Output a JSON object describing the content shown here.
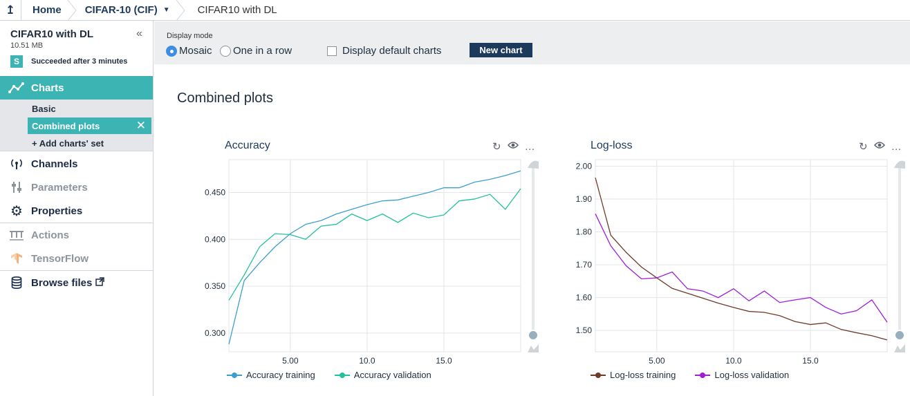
{
  "breadcrumb": {
    "up_icon": "up-arrow-icon",
    "home": "Home",
    "project": "CIFAR-10 (CIF)",
    "current": "CIFAR10 with DL"
  },
  "sidebar": {
    "experiment_title": "CIFAR10 with DL",
    "size": "10.51 MB",
    "status_badge": "S",
    "status_text": "Succeeded after 3 minutes",
    "collapse_icon": "«",
    "charts_label": "Charts",
    "chart_sets": [
      {
        "label": "Basic"
      },
      {
        "label": "Combined plots"
      },
      {
        "label": "+ Add charts' set"
      }
    ],
    "items": [
      {
        "label": "Channels",
        "icon": "antenna-icon"
      },
      {
        "label": "Parameters",
        "icon": "sliders-icon"
      },
      {
        "label": "Properties",
        "icon": "gear-icon"
      },
      {
        "label": "Actions",
        "icon": "actions-icon"
      },
      {
        "label": "TensorFlow",
        "icon": "tensorflow-icon"
      },
      {
        "label": "Browse files",
        "icon": "database-icon"
      }
    ]
  },
  "display_mode": {
    "label": "Display mode",
    "options": [
      "Mosaic",
      "One in a row"
    ],
    "selected": "Mosaic",
    "default_charts_label": "Display default charts",
    "new_chart_label": "New chart"
  },
  "chart_set_title": "Combined plots",
  "colors": {
    "accent": "#3cb4b4",
    "navy": "#1b3a5c",
    "acc_train": "#3a9fd0",
    "acc_val": "#21c29b",
    "loss_train": "#6e3b2a",
    "loss_val": "#9d1fd6"
  },
  "chart_data": [
    {
      "type": "line",
      "title": "Accuracy",
      "x": [
        1,
        2,
        3,
        4,
        5,
        6,
        7,
        8,
        9,
        10,
        11,
        12,
        13,
        14,
        15,
        16,
        17,
        18,
        19,
        20
      ],
      "xticks": [
        "5.00",
        "10.0",
        "15.0"
      ],
      "xtick_values": [
        5,
        10,
        15
      ],
      "yticks": [
        "0.300",
        "0.350",
        "0.400",
        "0.450"
      ],
      "ytick_values": [
        0.3,
        0.35,
        0.4,
        0.45
      ],
      "xlim": [
        1,
        20
      ],
      "ylim": [
        0.28,
        0.485
      ],
      "grid": true,
      "series": [
        {
          "name": "Accuracy training",
          "color": "#3a9fd0",
          "values": [
            0.288,
            0.356,
            0.375,
            0.392,
            0.406,
            0.416,
            0.42,
            0.427,
            0.432,
            0.437,
            0.441,
            0.442,
            0.446,
            0.45,
            0.455,
            0.455,
            0.461,
            0.464,
            0.468,
            0.473
          ]
        },
        {
          "name": "Accuracy validation",
          "color": "#21c29b",
          "values": [
            0.335,
            0.362,
            0.392,
            0.406,
            0.405,
            0.4,
            0.414,
            0.416,
            0.427,
            0.42,
            0.427,
            0.418,
            0.428,
            0.423,
            0.426,
            0.441,
            0.443,
            0.448,
            0.432,
            0.454
          ]
        }
      ]
    },
    {
      "type": "line",
      "title": "Log-loss",
      "x": [
        1,
        2,
        3,
        4,
        5,
        6,
        7,
        8,
        9,
        10,
        11,
        12,
        13,
        14,
        15,
        16,
        17,
        18,
        19,
        20
      ],
      "xticks": [
        "5.00",
        "10.0",
        "15.0"
      ],
      "xtick_values": [
        5,
        10,
        15
      ],
      "yticks": [
        "1.50",
        "1.60",
        "1.70",
        "1.80",
        "1.90",
        "2.00"
      ],
      "ytick_values": [
        1.5,
        1.6,
        1.7,
        1.8,
        1.9,
        2.0
      ],
      "xlim": [
        1,
        20
      ],
      "ylim": [
        1.435,
        2.02
      ],
      "grid": true,
      "series": [
        {
          "name": "Log-loss training",
          "color": "#6e3b2a",
          "values": [
            1.965,
            1.79,
            1.738,
            1.693,
            1.66,
            1.628,
            1.613,
            1.598,
            1.583,
            1.57,
            1.558,
            1.555,
            1.545,
            1.527,
            1.518,
            1.523,
            1.503,
            1.493,
            1.484,
            1.471
          ]
        },
        {
          "name": "Log-loss validation",
          "color": "#9d1fd6",
          "values": [
            1.855,
            1.758,
            1.697,
            1.657,
            1.66,
            1.678,
            1.627,
            1.62,
            1.6,
            1.627,
            1.59,
            1.62,
            1.585,
            1.593,
            1.6,
            1.57,
            1.55,
            1.56,
            1.593,
            1.525
          ]
        }
      ]
    }
  ]
}
